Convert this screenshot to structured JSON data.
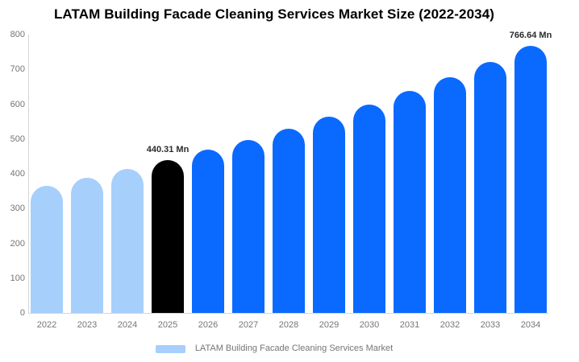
{
  "title": "LATAM Building Facade Cleaning Services Market Size (2022-2034)",
  "legend": {
    "label": "LATAM Building Facade Cleaning Services Market",
    "swatch_color": "#a6cffc"
  },
  "colors": {
    "historical": "#a6cffc",
    "highlight": "#000000",
    "forecast": "#0a6aff",
    "axis_line": "#d6d6d6",
    "tick_text": "#757575",
    "value_label_text": "#2b2b2b",
    "title_text": "#000000"
  },
  "chart_data": {
    "type": "bar",
    "title": "LATAM Building Facade Cleaning Services Market Size (2022-2034)",
    "unit": "Mn",
    "xlabel": "",
    "ylabel": "",
    "ylim": [
      0,
      800
    ],
    "yticks": [
      0,
      100,
      200,
      300,
      400,
      500,
      600,
      700,
      800
    ],
    "grid": false,
    "legend_position": "bottom",
    "categories": [
      "2022",
      "2023",
      "2024",
      "2025",
      "2026",
      "2027",
      "2028",
      "2029",
      "2030",
      "2031",
      "2032",
      "2033",
      "2034"
    ],
    "values": [
      365.95,
      389.23,
      413.99,
      440.31,
      468.32,
      498.11,
      529.79,
      563.49,
      599.33,
      637.45,
      678.0,
      721.12,
      766.64
    ],
    "bar_styles": [
      "historical",
      "historical",
      "historical",
      "highlight",
      "forecast",
      "forecast",
      "forecast",
      "forecast",
      "forecast",
      "forecast",
      "forecast",
      "forecast",
      "forecast"
    ],
    "value_labels": [
      {
        "index": 3,
        "text": "440.31 Mn"
      },
      {
        "index": 12,
        "text": "766.64 Mn"
      }
    ]
  }
}
